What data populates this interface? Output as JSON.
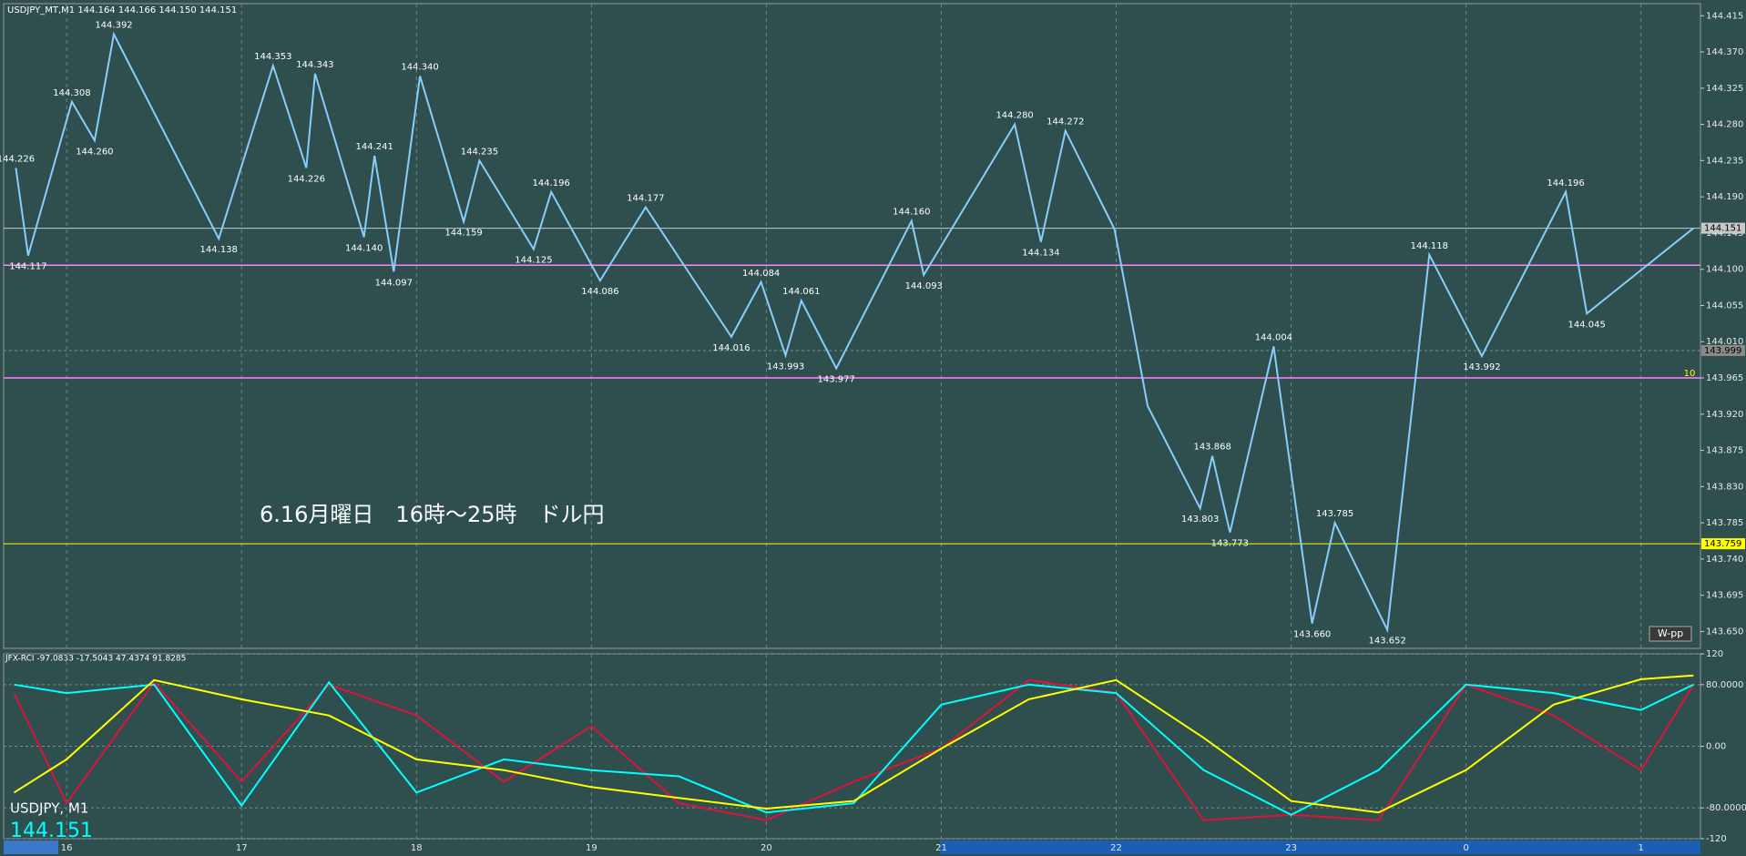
{
  "chart_data": [
    {
      "type": "line",
      "title": "USDJPY_MT,M1  144.164 144.166 144.150 144.151",
      "annotation": "6.16月曜日　16時～25時　ドル円",
      "badge": "W-pp",
      "marker_label": "10",
      "grid": "x",
      "xlim": [
        15.64,
        25.34
      ],
      "xticks": [
        16,
        17,
        18,
        19,
        20,
        21,
        22,
        23,
        {
          "value": 24,
          "label": "0"
        },
        {
          "value": 25,
          "label": "1"
        }
      ],
      "ylim": [
        143.629,
        144.43
      ],
      "yticks": [
        {
          "value": 143.65,
          "label": "143.650"
        },
        143.695,
        {
          "value": 143.74,
          "label": "143.740"
        },
        143.785,
        {
          "value": 143.83,
          "label": "143.830"
        },
        143.875,
        {
          "value": 143.92,
          "label": "143.920"
        },
        143.965,
        {
          "value": 144.01,
          "label": "144.010"
        },
        144.055,
        {
          "value": 144.1,
          "label": "144.100"
        },
        144.145,
        {
          "value": 144.19,
          "label": "144.190"
        },
        144.235,
        {
          "value": 144.28,
          "label": "144.280"
        },
        144.325,
        {
          "value": 144.37,
          "label": "144.370"
        },
        144.415
      ],
      "x": [
        15.71,
        15.78,
        16.03,
        16.16,
        16.27,
        16.87,
        17.18,
        17.37,
        17.42,
        17.7,
        17.76,
        17.87,
        18.02,
        18.27,
        18.36,
        18.67,
        18.77,
        19.05,
        19.31,
        19.8,
        19.97,
        20.11,
        20.2,
        20.4,
        20.83,
        20.9,
        21.42,
        21.57,
        21.71,
        21.99,
        22.18,
        22.48,
        22.55,
        22.65,
        22.9,
        23.12,
        23.25,
        23.55,
        23.79,
        24.09,
        24.57,
        24.69,
        25.3
      ],
      "series": [
        {
          "color": "#87cefa",
          "values": [
            144.226,
            144.117,
            144.308,
            144.26,
            144.392,
            144.138,
            144.353,
            144.226,
            144.343,
            144.14,
            144.241,
            144.097,
            144.34,
            144.159,
            144.235,
            144.125,
            144.196,
            144.086,
            144.177,
            144.016,
            144.084,
            143.993,
            144.061,
            143.977,
            144.16,
            144.093,
            144.28,
            144.134,
            144.272,
            144.15,
            143.93,
            143.803,
            143.868,
            143.773,
            144.004,
            143.66,
            143.785,
            143.652,
            144.118,
            143.992,
            144.196,
            144.045,
            144.151
          ],
          "value_labels": [
            "144.226",
            "144.117",
            "144.308",
            "144.260",
            "144.392",
            "144.138",
            "144.353",
            "144.226",
            "144.343",
            "144.140",
            "144.241",
            "144.097",
            "144.340",
            "144.159",
            "144.235",
            "144.125",
            "144.196",
            "144.086",
            "144.177",
            "144.016",
            "144.084",
            "143.993",
            "144.061",
            "143.977",
            "144.160",
            "144.093",
            "144.280",
            "144.134",
            "144.272",
            null,
            null,
            "143.803",
            "143.868",
            "143.773",
            "144.004",
            "143.660",
            "143.785",
            "143.652",
            "144.118",
            "143.992",
            "144.196",
            "144.045",
            null
          ]
        }
      ],
      "price_lines": [
        {
          "value": 144.151,
          "color": "#c8c8c8"
        },
        {
          "value": 143.999,
          "color": "#8a8a8a"
        },
        {
          "value": 143.759,
          "color": "#ffff00"
        }
      ],
      "support_lines": [
        {
          "value": 144.105,
          "color": "#ff80ff"
        },
        {
          "value": 143.965,
          "color": "#ff80ff"
        }
      ]
    },
    {
      "type": "line",
      "title": "JFX-RCI -97.0833 -17.5043 47.4374 91.8285",
      "symbol": "USDJPY, M1",
      "price": "144.151",
      "xlim": [
        15.64,
        25.34
      ],
      "ylim": [
        -120,
        120
      ],
      "yticks": [
        -120,
        {
          "value": -80,
          "label": "-80.0000"
        },
        {
          "value": 0,
          "label": "0.00"
        },
        {
          "value": 80,
          "label": "80.0000"
        },
        120
      ],
      "x": [
        15.7,
        16,
        16.5,
        17,
        17.5,
        18,
        18.5,
        19,
        19.5,
        20,
        20.5,
        21,
        21.5,
        22,
        22.5,
        23,
        23.5,
        24,
        24.5,
        25,
        25.3
      ],
      "series": [
        {
          "color": "#dc143c",
          "values": [
            69,
            -74,
            83,
            -46,
            80,
            40,
            -46,
            26,
            -74,
            -96,
            -46,
            -3,
            86,
            69,
            -96,
            -89,
            -96,
            80,
            40,
            -31,
            80
          ]
        },
        {
          "color": "#00ffff",
          "values": [
            80,
            69,
            80,
            -77,
            83,
            -60,
            -17,
            -31,
            -39,
            -86,
            -74,
            54,
            80,
            69,
            -31,
            -89,
            -31,
            80,
            69,
            47,
            80
          ]
        },
        {
          "color": "#ffff00",
          "values": [
            -60,
            -17,
            86,
            61,
            40,
            -17,
            -31,
            -53,
            -67,
            -81,
            -71,
            -3,
            61,
            86,
            11,
            -71,
            -86,
            -31,
            54,
            87,
            91.8285
          ]
        }
      ]
    }
  ]
}
